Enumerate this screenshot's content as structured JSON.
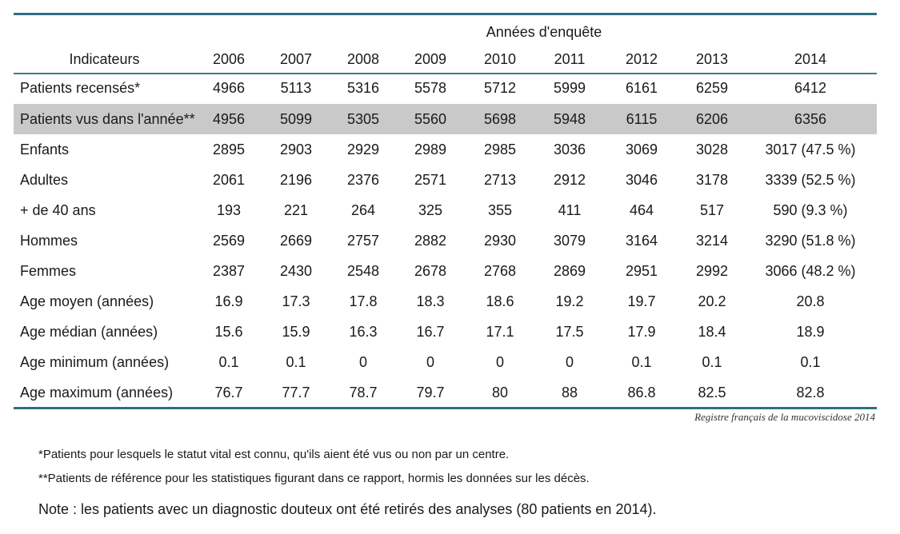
{
  "table": {
    "super_header": "Années d'enquête",
    "columns": [
      "Indicateurs",
      "2006",
      "2007",
      "2008",
      "2009",
      "2010",
      "2011",
      "2012",
      "2013",
      "2014"
    ],
    "rows": [
      {
        "label": "Patients recensés*",
        "values": [
          "4966",
          "5113",
          "5316",
          "5578",
          "5712",
          "5999",
          "6161",
          "6259",
          "6412"
        ],
        "highlight": false
      },
      {
        "label": "Patients vus dans l'année**",
        "values": [
          "4956",
          "5099",
          "5305",
          "5560",
          "5698",
          "5948",
          "6115",
          "6206",
          "6356"
        ],
        "highlight": true
      },
      {
        "label": "Enfants",
        "values": [
          "2895",
          "2903",
          "2929",
          "2989",
          "2985",
          "3036",
          "3069",
          "3028",
          "3017 (47.5 %)"
        ],
        "highlight": false
      },
      {
        "label": "Adultes",
        "values": [
          "2061",
          "2196",
          "2376",
          "2571",
          "2713",
          "2912",
          "3046",
          "3178",
          "3339 (52.5 %)"
        ],
        "highlight": false
      },
      {
        "label": "+ de 40 ans",
        "values": [
          "193",
          "221",
          "264",
          "325",
          "355",
          "411",
          "464",
          "517",
          "590 (9.3 %)"
        ],
        "highlight": false
      },
      {
        "label": "Hommes",
        "values": [
          "2569",
          "2669",
          "2757",
          "2882",
          "2930",
          "3079",
          "3164",
          "3214",
          "3290 (51.8 %)"
        ],
        "highlight": false
      },
      {
        "label": "Femmes",
        "values": [
          "2387",
          "2430",
          "2548",
          "2678",
          "2768",
          "2869",
          "2951",
          "2992",
          "3066 (48.2 %)"
        ],
        "highlight": false
      },
      {
        "label": "Age moyen (années)",
        "values": [
          "16.9",
          "17.3",
          "17.8",
          "18.3",
          "18.6",
          "19.2",
          "19.7",
          "20.2",
          "20.8"
        ],
        "highlight": false
      },
      {
        "label": "Age médian (années)",
        "values": [
          "15.6",
          "15.9",
          "16.3",
          "16.7",
          "17.1",
          "17.5",
          "17.9",
          "18.4",
          "18.9"
        ],
        "highlight": false
      },
      {
        "label": "Age minimum (années)",
        "values": [
          "0.1",
          "0.1",
          "0",
          "0",
          "0",
          "0",
          "0.1",
          "0.1",
          "0.1"
        ],
        "highlight": false
      },
      {
        "label": "Age maximum (années)",
        "values": [
          "76.7",
          "77.7",
          "78.7",
          "79.7",
          "80",
          "88",
          "86.8",
          "82.5",
          "82.8"
        ],
        "highlight": false
      }
    ]
  },
  "source": "Registre français de la mucoviscidose 2014",
  "footnotes": {
    "f1": "*Patients pour lesquels le statut vital est connu, qu'ils aient été vus ou non par un centre.",
    "f2": "**Patients de référence pour les statistiques figurant dans ce rapport, hormis les données sur les décès.",
    "note": "Note : les patients avec un diagnostic douteux ont été retirés des analyses (80 patients en 2014)."
  },
  "colors": {
    "rule": "#2f6f7f",
    "highlight_row": "#c9c9c9"
  }
}
